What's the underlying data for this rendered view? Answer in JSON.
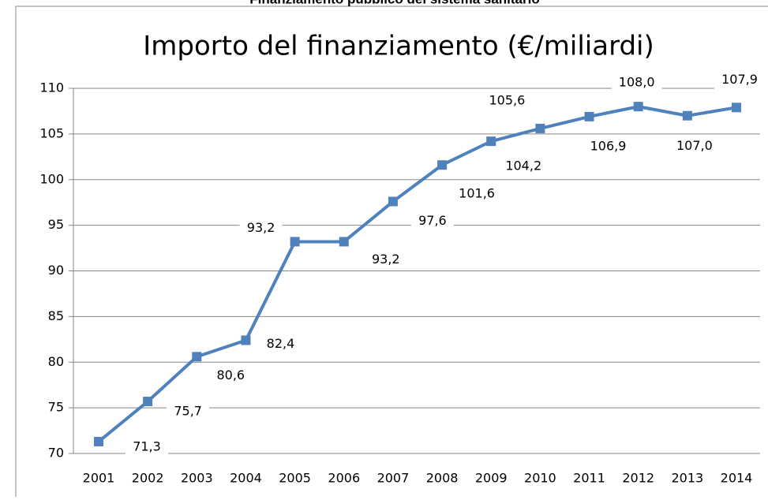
{
  "header": {
    "title": "Finanziamento pubblico del sistema sanitario"
  },
  "chart_data": {
    "type": "line",
    "title": "Importo del finanziamento (€/miliardi)",
    "categories": [
      "2001",
      "2002",
      "2003",
      "2004",
      "2005",
      "2006",
      "2007",
      "2008",
      "2009",
      "2010",
      "2011",
      "2012",
      "2013",
      "2014"
    ],
    "series": [
      {
        "name": "Importo",
        "color": "#4f81bd",
        "values": [
          71.3,
          75.7,
          80.6,
          82.4,
          93.2,
          93.2,
          97.6,
          101.6,
          104.2,
          105.6,
          106.9,
          108.0,
          107.0,
          107.9
        ],
        "value_labels": [
          "71,3",
          "75,7",
          "80,6",
          "82,4",
          "93,2",
          "93,2",
          "97,6",
          "101,6",
          "104,2",
          "105,6",
          "106,9",
          "108,0",
          "107,0",
          "107,9"
        ]
      }
    ],
    "ylim": [
      70,
      110
    ],
    "yticks": [
      70,
      75,
      80,
      85,
      90,
      95,
      100,
      105,
      110
    ],
    "grid": true
  }
}
